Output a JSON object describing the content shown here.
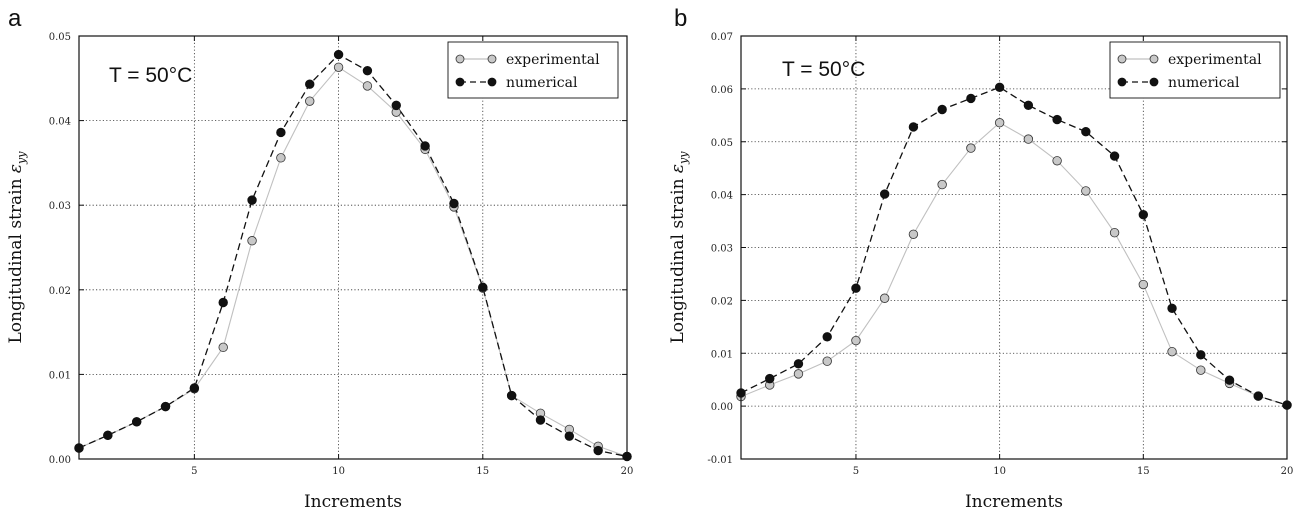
{
  "panels": [
    {
      "letter": "a",
      "annotation": "T = 50°C",
      "legend": [
        "experimental",
        "numerical"
      ]
    },
    {
      "letter": "b",
      "annotation": "T = 50°C",
      "legend": [
        "experimental",
        "numerical"
      ]
    }
  ],
  "chart_data": [
    {
      "type": "line",
      "xlabel": "Increments",
      "ylabel": "Longitudinal strain ε_yy",
      "xlim": [
        1,
        20
      ],
      "ylim": [
        0,
        0.05
      ],
      "xticks": [
        5,
        10,
        15,
        20
      ],
      "yticks": [
        0.0,
        0.01,
        0.02,
        0.03,
        0.04,
        0.05
      ],
      "ytick_labels": [
        "0.00",
        "0.01",
        "0.02",
        "0.03",
        "0.04",
        "0.05"
      ],
      "grid": true,
      "legend_position": "top-right",
      "colors": {
        "experimental_marker": "#c8c8c8",
        "experimental_line": "#c0c0c0",
        "numerical": "#111111"
      },
      "series": [
        {
          "name": "experimental",
          "x": [
            1,
            2,
            3,
            4,
            5,
            6,
            7,
            8,
            9,
            10,
            11,
            12,
            13,
            14,
            15,
            16,
            17,
            18,
            19,
            20
          ],
          "values": [
            0.0013,
            0.0028,
            0.0044,
            0.0062,
            0.0083,
            0.0132,
            0.0258,
            0.0356,
            0.0423,
            0.0463,
            0.0441,
            0.041,
            0.0366,
            0.0298,
            0.0202,
            0.0075,
            0.0054,
            0.0035,
            0.0015,
            0.0003
          ]
        },
        {
          "name": "numerical",
          "x": [
            1,
            2,
            3,
            4,
            5,
            6,
            7,
            8,
            9,
            10,
            11,
            12,
            13,
            14,
            15,
            16,
            17,
            18,
            19,
            20
          ],
          "values": [
            0.0013,
            0.0028,
            0.0044,
            0.0062,
            0.0084,
            0.0185,
            0.0306,
            0.0386,
            0.0443,
            0.0478,
            0.0459,
            0.0418,
            0.037,
            0.0302,
            0.0203,
            0.0075,
            0.0046,
            0.0027,
            0.001,
            0.0003
          ]
        }
      ]
    },
    {
      "type": "line",
      "xlabel": "Increments",
      "ylabel": "Longitudinal strain ε_yy",
      "xlim": [
        1,
        20
      ],
      "ylim": [
        -0.01,
        0.07
      ],
      "xticks": [
        5,
        10,
        15,
        20
      ],
      "yticks": [
        -0.01,
        0.0,
        0.01,
        0.02,
        0.03,
        0.04,
        0.05,
        0.06,
        0.07
      ],
      "ytick_labels": [
        "-0.01",
        "0.00",
        "0.01",
        "0.02",
        "0.03",
        "0.04",
        "0.05",
        "0.06",
        "0.07"
      ],
      "grid": true,
      "legend_position": "top-right",
      "colors": {
        "experimental_marker": "#c8c8c8",
        "experimental_line": "#c0c0c0",
        "numerical": "#111111"
      },
      "series": [
        {
          "name": "experimental",
          "x": [
            1,
            2,
            3,
            4,
            5,
            6,
            7,
            8,
            9,
            10,
            11,
            12,
            13,
            14,
            15,
            16,
            17,
            18,
            19,
            20
          ],
          "values": [
            0.0018,
            0.004,
            0.0061,
            0.0085,
            0.0124,
            0.0204,
            0.0325,
            0.0419,
            0.0488,
            0.0536,
            0.0505,
            0.0464,
            0.0407,
            0.0328,
            0.023,
            0.0103,
            0.0068,
            0.0043,
            0.0019,
            0.0002
          ]
        },
        {
          "name": "numerical",
          "x": [
            1,
            2,
            3,
            4,
            5,
            6,
            7,
            8,
            9,
            10,
            11,
            12,
            13,
            14,
            15,
            16,
            17,
            18,
            19,
            20
          ],
          "values": [
            0.0025,
            0.0052,
            0.008,
            0.0131,
            0.0223,
            0.0401,
            0.0528,
            0.0561,
            0.0582,
            0.0603,
            0.0569,
            0.0542,
            0.0519,
            0.0473,
            0.0362,
            0.0185,
            0.0097,
            0.0049,
            0.0019,
            0.0002
          ]
        }
      ]
    }
  ]
}
